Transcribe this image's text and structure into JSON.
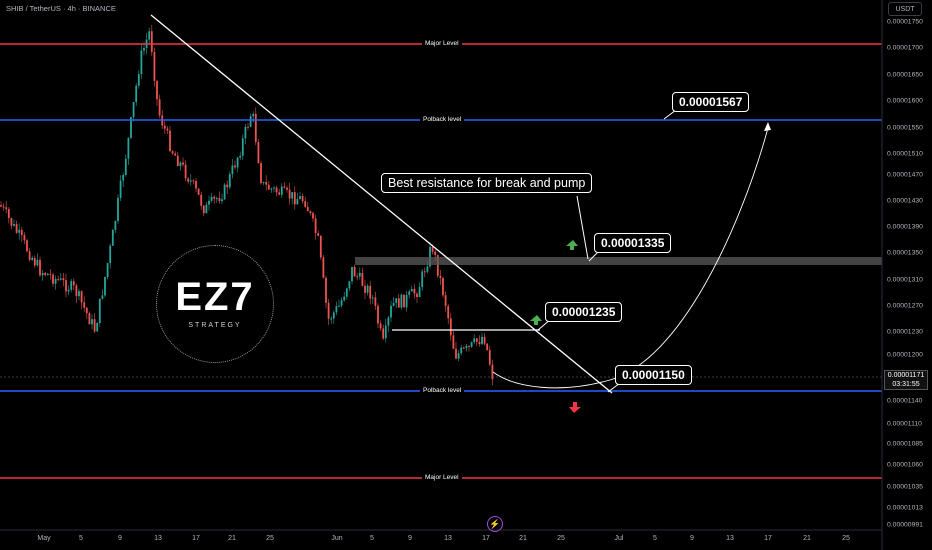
{
  "header": {
    "symbol": "SHIB / TetherUS · 4h · BINANCE",
    "unit": "USDT"
  },
  "price_tag": {
    "value": "0.00001171",
    "countdown": "03:31:55"
  },
  "logo": {
    "text": "EZ7",
    "subtext": "STRATEGY"
  },
  "annotations": {
    "resistance_note": "Best resistance for break and pump",
    "target_1567": "0.00001567",
    "level_1335": "0.00001335",
    "level_1235": "0.00001235",
    "level_1150": "0.00001150"
  },
  "levels": {
    "major_top": "Major Level",
    "pullback_top": "Polback level",
    "pullback_bottom": "Polback level",
    "major_bottom": "Major Level"
  },
  "colors": {
    "major": "#f23645",
    "pullback": "#2962ff",
    "up_candle": "#26a69a",
    "down_candle": "#ef5350",
    "up_arrow": "#4caf50",
    "down_arrow": "#f23645"
  },
  "chart_data": {
    "type": "candlestick",
    "y_axis_ticks": [
      "0.00001750",
      "0.00001700",
      "0.00001650",
      "0.00001600",
      "0.00001550",
      "0.00001510",
      "0.00001470",
      "0.00001430",
      "0.00001390",
      "0.00001350",
      "0.00001310",
      "0.00001270",
      "0.00001230",
      "0.00001200",
      "0.00001140",
      "0.00001110",
      "0.00001085",
      "0.00001060",
      "0.00001035",
      "0.00001013",
      "0.00000991"
    ],
    "x_axis_ticks": [
      "May",
      "5",
      "9",
      "13",
      "17",
      "21",
      "25",
      "Jun",
      "5",
      "9",
      "13",
      "17",
      "21",
      "25",
      "Jul",
      "5",
      "9",
      "13",
      "17",
      "21",
      "25"
    ],
    "horizontal_levels": [
      {
        "name": "Major Level",
        "value": 1.7e-05,
        "color": "red"
      },
      {
        "name": "Polback level",
        "value": 1.56e-05,
        "color": "blue"
      },
      {
        "name": "Polback level",
        "value": 1.15e-05,
        "color": "blue"
      },
      {
        "name": "Major Level",
        "value": 1.05e-05,
        "color": "red"
      }
    ],
    "close_path_approx": [
      {
        "x": "May 1",
        "y": 1.4e-05
      },
      {
        "x": "May 5",
        "y": 1.3e-05
      },
      {
        "x": "May 9",
        "y": 1.45e-05
      },
      {
        "x": "May 11",
        "y": 1.7e-05
      },
      {
        "x": "May 13",
        "y": 1.55e-05
      },
      {
        "x": "May 17",
        "y": 1.48e-05
      },
      {
        "x": "May 21",
        "y": 1.42e-05
      },
      {
        "x": "May 23",
        "y": 1.58e-05
      },
      {
        "x": "May 25",
        "y": 1.46e-05
      },
      {
        "x": "May 29",
        "y": 1.42e-05
      },
      {
        "x": "Jun 1",
        "y": 1.28e-05
      },
      {
        "x": "Jun 3",
        "y": 1.32e-05
      },
      {
        "x": "Jun 5",
        "y": 1.27e-05
      },
      {
        "x": "Jun 7",
        "y": 1.25e-05
      },
      {
        "x": "Jun 10",
        "y": 1.28e-05
      },
      {
        "x": "Jun 12",
        "y": 1.36e-05
      },
      {
        "x": "Jun 14",
        "y": 1.22e-05
      },
      {
        "x": "Jun 16",
        "y": 1.2e-05
      },
      {
        "x": "Jun 18",
        "y": 1.17e-05
      }
    ],
    "trendline": [
      {
        "x": "May 13",
        "y": 1.76e-05
      },
      {
        "x": "Jun 29",
        "y": 1.15e-05
      }
    ],
    "projection": [
      {
        "x": "Jun 18",
        "y": 1.17e-05
      },
      {
        "x": "Jun 25",
        "y": 1.15e-05
      },
      {
        "x": "Jul 17",
        "y": 1.567e-05
      }
    ],
    "current_price": 1.171e-05
  }
}
